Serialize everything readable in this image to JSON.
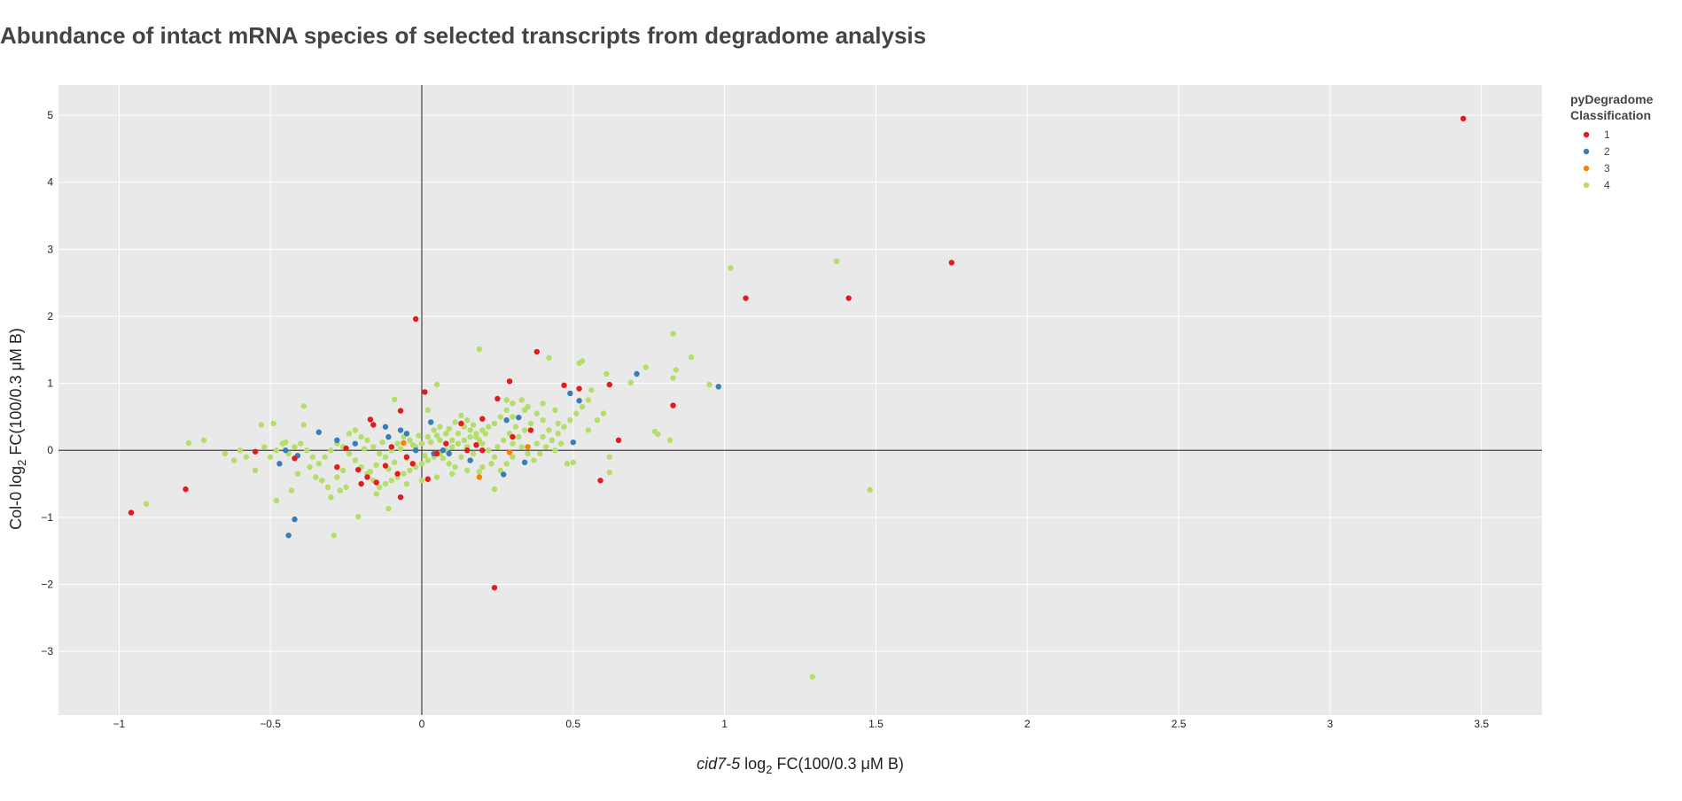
{
  "chart_data": {
    "type": "scatter",
    "title": "Abundance of intact mRNA species of selected transcripts from degradome analysis",
    "xlabel": {
      "italic": "cid7-5",
      "log": "log",
      "sub": "2",
      "rest": "FC(100/0.3 μM B)"
    },
    "ylabel": {
      "prefix": "Col-0 log",
      "sub": "2",
      "rest": "FC(100/0.3 μM B)"
    },
    "xlim": [
      -1.2,
      3.7
    ],
    "ylim": [
      -3.95,
      5.45
    ],
    "xticks": [
      -1,
      -0.5,
      0,
      0.5,
      1,
      1.5,
      2,
      2.5,
      3,
      3.5
    ],
    "xtick_labels": [
      "−1",
      "−0.5",
      "0",
      "0.5",
      "1",
      "1.5",
      "2",
      "2.5",
      "3",
      "3.5"
    ],
    "yticks": [
      -3,
      -2,
      -1,
      0,
      1,
      2,
      3,
      4,
      5
    ],
    "ytick_labels": [
      "−3",
      "−2",
      "−1",
      "0",
      "1",
      "2",
      "3",
      "4",
      "5"
    ],
    "grid": true,
    "zero_lines": true,
    "background": "#e9e9e9",
    "legend": {
      "position": "top-right",
      "title_lines": [
        "pyDegradome",
        "Classification"
      ]
    },
    "series": [
      {
        "name": "1",
        "color": "#e41a1c",
        "points": [
          [
            3.44,
            4.95
          ],
          [
            1.75,
            2.8
          ],
          [
            1.41,
            2.27
          ],
          [
            1.07,
            2.27
          ],
          [
            -0.02,
            1.96
          ],
          [
            0.24,
            -2.05
          ],
          [
            -0.96,
            -0.93
          ],
          [
            -0.78,
            -0.58
          ],
          [
            -0.55,
            -0.02
          ],
          [
            -0.42,
            -0.12
          ],
          [
            0.38,
            1.47
          ],
          [
            0.29,
            1.03
          ],
          [
            0.47,
            0.97
          ],
          [
            0.52,
            0.92
          ],
          [
            0.62,
            0.98
          ],
          [
            0.83,
            0.67
          ],
          [
            0.65,
            0.15
          ],
          [
            0.59,
            -0.45
          ],
          [
            0.01,
            0.87
          ],
          [
            0.25,
            0.77
          ],
          [
            -0.07,
            0.59
          ],
          [
            -0.17,
            0.46
          ],
          [
            -0.16,
            0.38
          ],
          [
            0.13,
            0.4
          ],
          [
            0.2,
            0.47
          ],
          [
            0.3,
            0.2
          ],
          [
            0.36,
            0.3
          ],
          [
            -0.28,
            -0.25
          ],
          [
            -0.25,
            0.03
          ],
          [
            -0.21,
            -0.29
          ],
          [
            -0.2,
            -0.5
          ],
          [
            -0.18,
            -0.4
          ],
          [
            -0.15,
            -0.48
          ],
          [
            -0.12,
            -0.23
          ],
          [
            -0.08,
            -0.35
          ],
          [
            -0.07,
            -0.7
          ],
          [
            -0.05,
            -0.1
          ],
          [
            -0.03,
            -0.2
          ],
          [
            0.02,
            -0.43
          ],
          [
            0.05,
            -0.05
          ],
          [
            0.08,
            0.1
          ],
          [
            0.15,
            0.0
          ],
          [
            0.2,
            0.0
          ],
          [
            0.18,
            0.08
          ],
          [
            -0.1,
            0.05
          ]
        ]
      },
      {
        "name": "2",
        "color": "#377eb8",
        "points": [
          [
            0.98,
            0.95
          ],
          [
            0.71,
            1.14
          ],
          [
            0.49,
            0.85
          ],
          [
            0.52,
            0.74
          ],
          [
            0.5,
            0.12
          ],
          [
            -0.44,
            -1.27
          ],
          [
            -0.42,
            -1.03
          ],
          [
            -0.47,
            -0.2
          ],
          [
            -0.45,
            0.0
          ],
          [
            -0.41,
            -0.08
          ],
          [
            -0.34,
            0.27
          ],
          [
            -0.28,
            0.15
          ],
          [
            -0.22,
            0.1
          ],
          [
            -0.12,
            0.35
          ],
          [
            -0.11,
            0.2
          ],
          [
            -0.07,
            0.3
          ],
          [
            0.03,
            0.42
          ],
          [
            -0.05,
            0.25
          ],
          [
            0.28,
            0.45
          ],
          [
            0.32,
            0.49
          ],
          [
            0.27,
            -0.36
          ],
          [
            0.34,
            -0.18
          ],
          [
            0.04,
            -0.05
          ],
          [
            0.09,
            -0.05
          ],
          [
            -0.02,
            0.0
          ],
          [
            0.16,
            -0.15
          ],
          [
            0.07,
            0.0
          ]
        ]
      },
      {
        "name": "3",
        "color": "#ff7f00",
        "points": [
          [
            0.19,
            -0.4
          ],
          [
            0.29,
            -0.03
          ],
          [
            0.35,
            0.05
          ],
          [
            -0.06,
            0.11
          ]
        ]
      },
      {
        "name": "4",
        "color": "#b3de69",
        "points": [
          [
            1.29,
            -3.38
          ],
          [
            1.48,
            -0.59
          ],
          [
            1.37,
            2.82
          ],
          [
            1.02,
            2.72
          ],
          [
            0.95,
            0.98
          ],
          [
            0.89,
            1.39
          ],
          [
            0.83,
            1.74
          ],
          [
            0.84,
            1.2
          ],
          [
            0.83,
            1.08
          ],
          [
            0.74,
            1.24
          ],
          [
            0.69,
            1.01
          ],
          [
            0.61,
            1.14
          ],
          [
            0.56,
            0.9
          ],
          [
            0.53,
            1.33
          ],
          [
            0.52,
            1.3
          ],
          [
            0.42,
            1.38
          ],
          [
            0.19,
            1.51
          ],
          [
            0.82,
            0.15
          ],
          [
            0.78,
            0.24
          ],
          [
            0.77,
            0.28
          ],
          [
            0.62,
            -0.1
          ],
          [
            0.62,
            -0.33
          ],
          [
            0.5,
            -0.18
          ],
          [
            0.48,
            -0.2
          ],
          [
            0.55,
            0.3
          ],
          [
            0.58,
            0.45
          ],
          [
            0.6,
            0.55
          ],
          [
            0.45,
            0.4
          ],
          [
            0.4,
            0.45
          ],
          [
            0.38,
            0.55
          ],
          [
            0.35,
            0.65
          ],
          [
            0.33,
            0.75
          ],
          [
            0.3,
            0.7
          ],
          [
            0.28,
            0.6
          ],
          [
            0.26,
            0.5
          ],
          [
            0.24,
            0.4
          ],
          [
            0.22,
            0.35
          ],
          [
            0.2,
            0.3
          ],
          [
            0.18,
            0.25
          ],
          [
            0.16,
            0.2
          ],
          [
            0.14,
            0.15
          ],
          [
            0.12,
            0.1
          ],
          [
            0.1,
            0.05
          ],
          [
            0.08,
            0.0
          ],
          [
            0.06,
            -0.05
          ],
          [
            0.04,
            -0.1
          ],
          [
            0.02,
            -0.15
          ],
          [
            0.0,
            -0.2
          ],
          [
            -0.02,
            -0.25
          ],
          [
            -0.04,
            -0.3
          ],
          [
            -0.06,
            -0.35
          ],
          [
            -0.08,
            -0.4
          ],
          [
            -0.1,
            -0.45
          ],
          [
            -0.12,
            -0.5
          ],
          [
            -0.14,
            -0.55
          ],
          [
            -0.16,
            -0.45
          ],
          [
            -0.18,
            -0.35
          ],
          [
            -0.2,
            -0.25
          ],
          [
            -0.22,
            -0.15
          ],
          [
            -0.24,
            -0.05
          ],
          [
            -0.26,
            0.05
          ],
          [
            -0.28,
            0.1
          ],
          [
            -0.3,
            0.0
          ],
          [
            -0.32,
            -0.1
          ],
          [
            -0.34,
            -0.2
          ],
          [
            -0.36,
            -0.1
          ],
          [
            -0.38,
            0.0
          ],
          [
            -0.4,
            0.1
          ],
          [
            -0.42,
            0.05
          ],
          [
            -0.44,
            -0.05
          ],
          [
            -0.46,
            0.1
          ],
          [
            -0.48,
            0.0
          ],
          [
            -0.5,
            -0.1
          ],
          [
            -0.52,
            0.05
          ],
          [
            -0.55,
            -0.3
          ],
          [
            -0.58,
            -0.1
          ],
          [
            -0.62,
            -0.15
          ],
          [
            -0.72,
            0.15
          ],
          [
            -0.77,
            0.11
          ],
          [
            -0.91,
            -0.8
          ],
          [
            -0.39,
            0.66
          ],
          [
            -0.39,
            0.38
          ],
          [
            -0.48,
            -0.75
          ],
          [
            -0.43,
            -0.6
          ],
          [
            -0.29,
            -1.27
          ],
          [
            -0.21,
            -0.99
          ],
          [
            -0.11,
            -0.87
          ],
          [
            0.05,
            0.98
          ],
          [
            0.02,
            0.6
          ],
          [
            -0.09,
            0.76
          ],
          [
            0.24,
            -0.58
          ],
          [
            0.2,
            -0.25
          ],
          [
            0.15,
            -0.3
          ],
          [
            0.1,
            -0.35
          ],
          [
            0.05,
            -0.4
          ],
          [
            0.0,
            -0.45
          ],
          [
            -0.05,
            -0.5
          ],
          [
            -0.15,
            -0.65
          ],
          [
            -0.25,
            -0.55
          ],
          [
            -0.3,
            -0.7
          ],
          [
            -0.35,
            -0.4
          ],
          [
            0.3,
            0.1
          ],
          [
            0.32,
            0.2
          ],
          [
            0.34,
            0.3
          ],
          [
            0.36,
            0.4
          ],
          [
            0.38,
            0.1
          ],
          [
            0.4,
            0.2
          ],
          [
            0.42,
            0.3
          ],
          [
            0.44,
            0.0
          ],
          [
            0.46,
            0.1
          ],
          [
            0.3,
            -0.1
          ],
          [
            0.28,
            -0.2
          ],
          [
            0.26,
            -0.3
          ],
          [
            0.24,
            -0.1
          ],
          [
            0.22,
            0.0
          ],
          [
            0.2,
            0.1
          ],
          [
            0.18,
            0.2
          ],
          [
            0.16,
            0.3
          ],
          [
            0.14,
            0.35
          ],
          [
            0.12,
            0.25
          ],
          [
            0.1,
            0.15
          ],
          [
            0.08,
            0.25
          ],
          [
            0.06,
            0.35
          ],
          [
            0.04,
            0.3
          ],
          [
            0.02,
            0.2
          ],
          [
            0.0,
            0.1
          ],
          [
            -0.02,
            0.05
          ],
          [
            -0.04,
            0.15
          ],
          [
            -0.06,
            0.2
          ],
          [
            -0.08,
            0.1
          ],
          [
            -0.1,
            0.0
          ],
          [
            -0.12,
            -0.1
          ],
          [
            -0.14,
            -0.05
          ],
          [
            -0.16,
            0.05
          ],
          [
            -0.18,
            0.15
          ],
          [
            -0.2,
            0.2
          ],
          [
            -0.22,
            0.3
          ],
          [
            -0.24,
            0.25
          ],
          [
            -0.26,
            -0.3
          ],
          [
            -0.28,
            -0.4
          ],
          [
            0.06,
            0.15
          ],
          [
            0.09,
            -0.2
          ],
          [
            0.11,
            -0.25
          ],
          [
            0.13,
            -0.1
          ],
          [
            0.15,
            0.05
          ],
          [
            0.17,
            -0.05
          ],
          [
            0.19,
            0.15
          ],
          [
            0.21,
            0.25
          ],
          [
            0.23,
            -0.2
          ],
          [
            0.25,
            0.05
          ],
          [
            0.27,
            0.15
          ],
          [
            0.29,
            0.25
          ],
          [
            0.31,
            0.35
          ],
          [
            0.33,
            0.05
          ],
          [
            0.35,
            -0.05
          ],
          [
            -0.01,
            0.22
          ],
          [
            -0.03,
            0.08
          ],
          [
            -0.05,
            -0.12
          ],
          [
            -0.07,
            0.02
          ],
          [
            -0.09,
            -0.18
          ],
          [
            -0.11,
            -0.28
          ],
          [
            -0.13,
            0.12
          ],
          [
            -0.15,
            -0.22
          ],
          [
            -0.17,
            -0.32
          ],
          [
            -0.19,
            0.02
          ],
          [
            0.01,
            -0.08
          ],
          [
            0.03,
            0.12
          ],
          [
            0.05,
            0.22
          ],
          [
            0.07,
            -0.12
          ],
          [
            0.09,
            0.32
          ],
          [
            0.11,
            0.42
          ],
          [
            0.13,
            0.52
          ],
          [
            0.15,
            0.45
          ],
          [
            0.17,
            0.38
          ],
          [
            0.19,
            -0.32
          ],
          [
            0.37,
            -0.15
          ],
          [
            0.39,
            -0.05
          ],
          [
            0.41,
            0.05
          ],
          [
            0.43,
            0.15
          ],
          [
            0.45,
            0.25
          ],
          [
            0.47,
            0.35
          ],
          [
            0.49,
            0.45
          ],
          [
            0.51,
            0.55
          ],
          [
            0.53,
            0.65
          ],
          [
            0.55,
            0.75
          ],
          [
            0.28,
            0.75
          ],
          [
            0.3,
            0.5
          ],
          [
            0.34,
            0.6
          ],
          [
            0.4,
            0.7
          ],
          [
            0.44,
            0.6
          ],
          [
            -0.27,
            -0.6
          ],
          [
            -0.31,
            -0.55
          ],
          [
            -0.33,
            -0.45
          ],
          [
            -0.37,
            -0.25
          ],
          [
            -0.41,
            -0.35
          ],
          [
            -0.45,
            0.12
          ],
          [
            -0.49,
            0.4
          ],
          [
            -0.53,
            0.38
          ],
          [
            -0.6,
            0.0
          ],
          [
            -0.65,
            -0.05
          ]
        ]
      }
    ]
  }
}
